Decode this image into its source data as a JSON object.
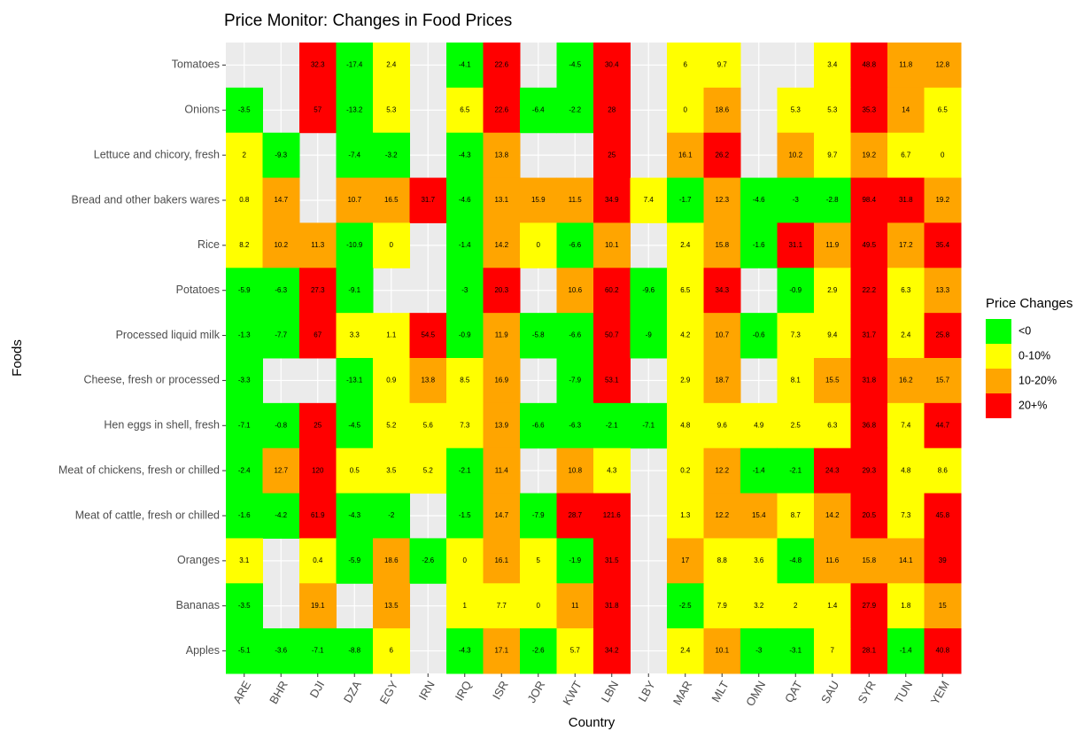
{
  "chart_data": {
    "type": "heatmap",
    "title": "Price Monitor: Changes in Food Prices",
    "x_label": "Country",
    "y_label": "Foods",
    "x": [
      "ARE",
      "BHR",
      "DJI",
      "DZA",
      "EGY",
      "IRN",
      "IRQ",
      "ISR",
      "JOR",
      "KWT",
      "LBN",
      "LBY",
      "MAR",
      "MLT",
      "OMN",
      "QAT",
      "SAU",
      "SYR",
      "TUN",
      "YEM"
    ],
    "y": [
      "Tomatoes",
      "Onions",
      "Lettuce and chicory, fresh",
      "Bread and other bakers wares",
      "Rice",
      "Potatoes",
      "Processed liquid milk",
      "Cheese, fresh or processed",
      "Hen eggs in shell, fresh",
      "Meat of chickens, fresh or chilled",
      "Meat of cattle, fresh or chilled",
      "Oranges",
      "Bananas",
      "Apples"
    ],
    "values": [
      [
        null,
        null,
        32.3,
        -17.4,
        2.4,
        null,
        -4.1,
        22.6,
        null,
        -4.5,
        30.4,
        null,
        6,
        9.7,
        null,
        null,
        3.4,
        48.8,
        11.8,
        12.8
      ],
      [
        -3.5,
        null,
        57,
        -13.2,
        5.3,
        null,
        6.5,
        22.6,
        -6.4,
        -2.2,
        28,
        null,
        0,
        18.6,
        null,
        5.3,
        5.3,
        35.3,
        14,
        6.5
      ],
      [
        2,
        -9.3,
        null,
        -7.4,
        -3.2,
        null,
        -4.3,
        13.8,
        null,
        null,
        25,
        null,
        16.1,
        26.2,
        null,
        10.2,
        9.7,
        19.2,
        6.7,
        0
      ],
      [
        0.8,
        14.7,
        null,
        10.7,
        16.5,
        31.7,
        -4.6,
        13.1,
        15.9,
        11.5,
        34.9,
        7.4,
        -1.7,
        12.3,
        -4.6,
        -3,
        -2.8,
        98.4,
        31.8,
        19.2
      ],
      [
        8.2,
        10.2,
        11.3,
        -10.9,
        0,
        null,
        -1.4,
        14.2,
        0,
        -6.6,
        10.1,
        null,
        2.4,
        15.8,
        -1.6,
        31.1,
        11.9,
        49.5,
        17.2,
        35.4
      ],
      [
        -5.9,
        -6.3,
        27.3,
        -9.1,
        null,
        null,
        -3,
        20.3,
        null,
        10.6,
        60.2,
        -9.6,
        6.5,
        34.3,
        null,
        -0.9,
        2.9,
        22.2,
        6.3,
        13.3
      ],
      [
        -1.3,
        -7.7,
        67,
        3.3,
        1.1,
        54.5,
        -0.9,
        11.9,
        -5.8,
        -6.6,
        50.7,
        -9,
        4.2,
        10.7,
        -0.6,
        7.3,
        9.4,
        31.7,
        2.4,
        25.8
      ],
      [
        -3.3,
        null,
        null,
        -13.1,
        0.9,
        13.8,
        8.5,
        16.9,
        null,
        -7.9,
        53.1,
        null,
        2.9,
        18.7,
        null,
        8.1,
        15.5,
        31.8,
        16.2,
        15.7
      ],
      [
        -7.1,
        -0.8,
        25,
        -4.5,
        5.2,
        5.6,
        7.3,
        13.9,
        -6.6,
        -6.3,
        -2.1,
        -7.1,
        4.8,
        9.6,
        4.9,
        2.5,
        6.3,
        36.8,
        7.4,
        44.7
      ],
      [
        -2.4,
        12.7,
        120,
        0.5,
        3.5,
        5.2,
        -2.1,
        11.4,
        null,
        10.8,
        4.3,
        null,
        0.2,
        12.2,
        -1.4,
        -2.1,
        24.3,
        29.3,
        4.8,
        8.6
      ],
      [
        -1.6,
        -4.2,
        61.9,
        -4.3,
        -2,
        null,
        -1.5,
        14.7,
        -7.9,
        28.7,
        121.6,
        null,
        1.3,
        12.2,
        15.4,
        8.7,
        14.2,
        20.5,
        7.3,
        45.8
      ],
      [
        3.1,
        null,
        0.4,
        -5.9,
        18.6,
        -2.6,
        0,
        16.1,
        5,
        -1.9,
        31.5,
        null,
        17,
        8.8,
        3.6,
        -4.8,
        11.6,
        15.8,
        14.1,
        39
      ],
      [
        -3.5,
        null,
        19.1,
        null,
        13.5,
        null,
        1,
        7.7,
        0,
        11,
        31.8,
        null,
        -2.5,
        7.9,
        3.2,
        2,
        1.4,
        27.9,
        1.8,
        15
      ],
      [
        -5.1,
        -3.6,
        -7.1,
        -8.8,
        6,
        null,
        -4.3,
        17.1,
        -2.6,
        5.7,
        34.2,
        null,
        2.4,
        10.1,
        -3,
        -3.1,
        7,
        28.1,
        -1.4,
        40.8
      ]
    ],
    "legend": {
      "title": "Price Changes",
      "items": [
        {
          "label": "<0",
          "color": "#00ff00"
        },
        {
          "label": "0-10%",
          "color": "#ffff00"
        },
        {
          "label": "10-20%",
          "color": "#ffa500"
        },
        {
          "label": "20+%",
          "color": "#ff0000"
        }
      ]
    },
    "color_breaks": [
      0,
      10,
      20
    ],
    "grid": true
  }
}
